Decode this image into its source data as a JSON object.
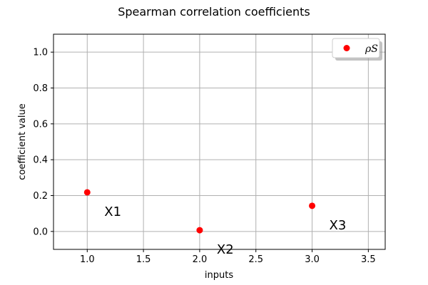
{
  "chart_data": {
    "type": "scatter",
    "title": "Spearman correlation coefficients",
    "xlabel": "inputs",
    "ylabel": "coefficient value",
    "xlim": [
      0.7,
      3.65
    ],
    "ylim": [
      -0.1,
      1.1
    ],
    "xticks": [
      "1.0",
      "1.5",
      "2.0",
      "2.5",
      "3.0",
      "3.5"
    ],
    "yticks": [
      "0.0",
      "0.2",
      "0.4",
      "0.6",
      "0.8",
      "1.0"
    ],
    "grid": true,
    "legend_position": "top-right",
    "series": [
      {
        "name": "ρS",
        "color": "#ff0000",
        "points": [
          {
            "x": 1.0,
            "y": 0.218,
            "label": "X1"
          },
          {
            "x": 2.0,
            "y": 0.007,
            "label": "X2"
          },
          {
            "x": 3.0,
            "y": 0.143,
            "label": "X3"
          }
        ]
      }
    ]
  }
}
